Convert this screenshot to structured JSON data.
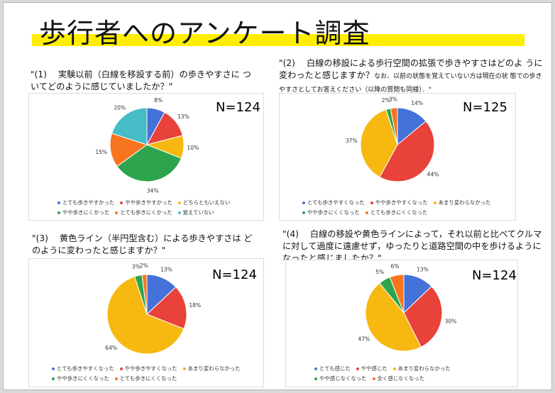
{
  "title": "歩行者へのアンケート調査",
  "chart_data": [
    {
      "type": "pie",
      "question": "\"(1)　 実験以前（白線を移設する前）の歩きやすさに ついてどのように感じていましたか？\"",
      "question_note": "",
      "n_label": "N=124",
      "categories": [
        "とても歩きやすかった",
        "やや歩きやすかった",
        "どちらともいえない",
        "やや歩きにくかった",
        "とても歩きにくかった",
        "覚えていない"
      ],
      "values": [
        8,
        13,
        10,
        34,
        15,
        20
      ],
      "labels": [
        "8%",
        "13%",
        "10%",
        "34%",
        "15%",
        "20%"
      ],
      "colors": [
        "#4472d9",
        "#e8423a",
        "#f6b811",
        "#2da44e",
        "#f7751e",
        "#45bcc6"
      ],
      "legend_rows": [
        [
          0,
          1,
          2
        ],
        [
          3,
          4,
          5
        ]
      ]
    },
    {
      "type": "pie",
      "question": "\"(2)　 白線の移設による歩行空間の拡張で歩きやすさはどのよ うに変わったと感じますか？",
      "question_note": "なお、以前の状態を覚えていない方は現在の状 態での歩きやすさとしてお答えください（以降の質問も同様）．\"",
      "n_label": "N=125",
      "categories": [
        "とても歩きやすくなった",
        "やや歩きやすくなった",
        "あまり変わらなかった",
        "やや歩きにくくなった",
        "とても歩きにくくなった"
      ],
      "values": [
        14,
        44,
        37,
        2,
        3
      ],
      "labels": [
        "14%",
        "44%",
        "37%",
        "2%",
        "3%"
      ],
      "colors": [
        "#4472d9",
        "#e8423a",
        "#f6b811",
        "#2da44e",
        "#f7751e"
      ],
      "legend_rows": [
        [
          0,
          1,
          2
        ],
        [
          3,
          4
        ]
      ]
    },
    {
      "type": "pie",
      "question": "\"(3)　 黄色ライン（半円型含む）による歩きやすさは どのように変わったと感じますか？\"",
      "question_note": "",
      "n_label": "N=124",
      "categories": [
        "とても歩きやすくなった",
        "やや歩きやすくなった",
        "あまり変わらなかった",
        "やや歩きにくくなった",
        "とても歩きにくくなった"
      ],
      "values": [
        13,
        18,
        64,
        3,
        2
      ],
      "labels": [
        "13%",
        "18%",
        "64%",
        "3%",
        "2%"
      ],
      "colors": [
        "#4472d9",
        "#e8423a",
        "#f6b811",
        "#2da44e",
        "#f7751e"
      ],
      "legend_rows": [
        [
          0,
          1,
          2
        ],
        [
          3,
          4
        ]
      ]
    },
    {
      "type": "pie",
      "question": "\"(4)　 白線の移設や黄色ラインによって，それ以前と比べてクルマ に対して過度に遠慮せず，ゆったりと道路空間の中を歩けるように なったと感じましたか？\"",
      "question_note": "",
      "n_label": "N=124",
      "categories": [
        "とても感じた",
        "やや感じた",
        "あまり変わらなかった",
        "やや感じなくなった",
        "全く感じなくなった"
      ],
      "values": [
        13,
        30,
        47,
        5,
        6
      ],
      "labels": [
        "13%",
        "30%",
        "47%",
        "5%",
        "6%"
      ],
      "colors": [
        "#4472d9",
        "#e8423a",
        "#f6b811",
        "#2da44e",
        "#f7751e"
      ],
      "legend_rows": [
        [
          0,
          1,
          2
        ],
        [
          3,
          4
        ]
      ]
    }
  ]
}
